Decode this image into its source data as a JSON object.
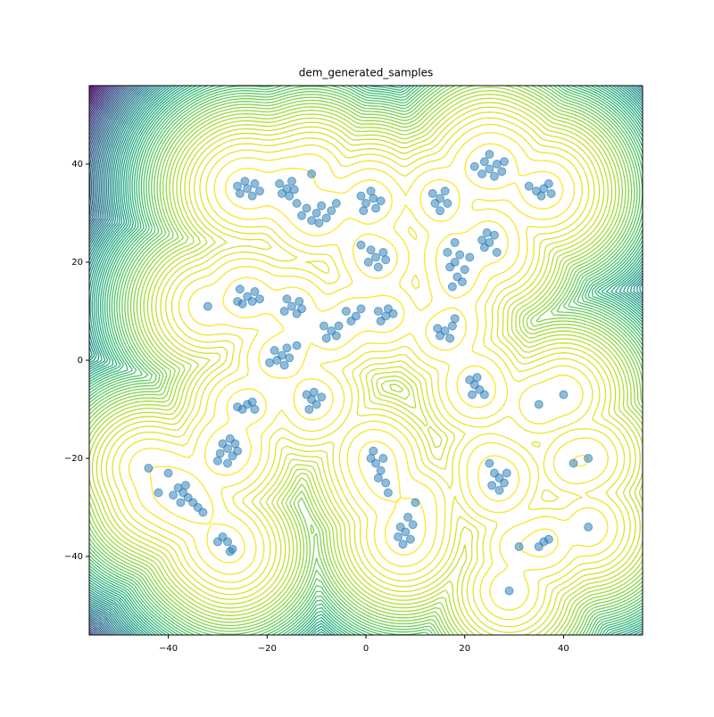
{
  "chart_data": {
    "type": "scatter",
    "title": "dem_generated_samples",
    "x": [
      -24,
      -22.5,
      -25.5,
      -23,
      -26,
      -21.5,
      -24.5,
      -16,
      -15,
      -17,
      -15.5,
      -17.5,
      -14.5,
      -10,
      -8,
      -12,
      -9,
      -11,
      -7,
      -13,
      -9.5,
      -6,
      -14,
      0,
      1.5,
      -1,
      2,
      -0.5,
      3,
      1,
      25,
      26.5,
      24,
      23.5,
      26,
      27.5,
      25,
      22,
      28,
      36,
      37,
      34.5,
      35.5,
      37.5,
      33,
      15,
      16,
      14,
      16.5,
      13.5,
      15,
      2,
      3.5,
      0.5,
      2.5,
      1,
      4,
      -1,
      18,
      19,
      17,
      18.5,
      17.5,
      20,
      16.5,
      19.5,
      18,
      21,
      25,
      26,
      24,
      26.5,
      24.5,
      23.5,
      -24,
      -22.5,
      -25,
      -23,
      -25.5,
      -21.5,
      -26,
      -15,
      -13.5,
      -16.5,
      -14,
      -16,
      -13,
      -2,
      -1,
      -3,
      -4,
      4,
      5.5,
      3,
      4.5,
      2.5,
      -7,
      -6,
      -8,
      -5.5,
      -8.5,
      -17,
      -16,
      -18,
      -15.5,
      -18.5,
      -16.5,
      -19.5,
      -14,
      16,
      17.5,
      15,
      17,
      14.5,
      18,
      22,
      23,
      21,
      22.5,
      24,
      21.5,
      -11,
      -10,
      -12,
      -10.5,
      -11.5,
      -9,
      -24,
      -25,
      -23,
      -26,
      -22.5,
      -28,
      -27,
      -29,
      -26.5,
      -29.5,
      -28,
      -27.5,
      -30,
      -26,
      -37,
      -36,
      -38,
      -35,
      -39,
      -34,
      -37.5,
      -36.5,
      -33,
      -28,
      -27,
      -29,
      -27.5,
      -30,
      2,
      3,
      1,
      3.5,
      2.5,
      4,
      1.5,
      4.5,
      8,
      9,
      7,
      8.5,
      7.5,
      9.5,
      6.5,
      27,
      28,
      26,
      25.5,
      28.5,
      27,
      25,
      36,
      35,
      37,
      -32,
      45,
      40,
      42,
      45,
      29,
      -44,
      -42,
      35,
      31,
      -11,
      10,
      -40
    ],
    "y": [
      35,
      36,
      34,
      33.5,
      35.5,
      34.5,
      36.5,
      35,
      36.5,
      34,
      33.5,
      36,
      34.8,
      30,
      29,
      31,
      31.5,
      28.5,
      30.5,
      29.5,
      28,
      32,
      32,
      32,
      33,
      33.5,
      31,
      30.5,
      32.5,
      34.5,
      39,
      40,
      40.5,
      38,
      37.5,
      38.5,
      42,
      39.5,
      40.5,
      35,
      36,
      34.5,
      33.5,
      34,
      35.5,
      33,
      34.5,
      32,
      32,
      34,
      30.5,
      21,
      22,
      20,
      19,
      22.5,
      20.5,
      23.5,
      20,
      21.5,
      19,
      17,
      15,
      18.5,
      22,
      16,
      24,
      21,
      24,
      25.5,
      23,
      22,
      26,
      24.5,
      13,
      14,
      11.5,
      12,
      14.5,
      12.5,
      12,
      11,
      12,
      10,
      9.5,
      12.5,
      10.5,
      9,
      10.5,
      8,
      10,
      9,
      9.5,
      8,
      10.5,
      10,
      6,
      5,
      4.5,
      7,
      7,
      1,
      2.5,
      0,
      0.5,
      2,
      -1,
      -0.5,
      3,
      6,
      7,
      5,
      4.5,
      6.5,
      8.5,
      -5,
      -6,
      -4,
      -3.5,
      -7,
      -7,
      -8,
      -9,
      -7,
      -6.5,
      -10,
      -7.5,
      -9,
      -10,
      -8.5,
      -9.5,
      -10,
      -18,
      -19.5,
      -17,
      -17,
      -19,
      -21,
      -16,
      -20.5,
      -18.5,
      -27,
      -28,
      -26,
      -29,
      -27.5,
      -30,
      -29,
      -25.5,
      -31,
      -37,
      -38.5,
      -36,
      -39,
      -37,
      -21,
      -22.5,
      -20,
      -20,
      -24,
      -25,
      -18.5,
      -27,
      -35,
      -36.5,
      -34,
      -32,
      -37.5,
      -33.5,
      -36,
      -24,
      -25,
      -23,
      -25.5,
      -23,
      -26.5,
      -21,
      -37,
      -38,
      -36.5,
      11,
      -20,
      -7,
      -21,
      -34,
      -47,
      -22,
      -27,
      -9,
      -38,
      38,
      -29,
      -23
    ],
    "color": "#1f77b4",
    "xlim": [
      -56,
      56
    ],
    "ylim": [
      -56,
      56
    ],
    "xticks": [
      {
        "value": -40,
        "label": "−40"
      },
      {
        "value": -20,
        "label": "−20"
      },
      0,
      20,
      40
    ],
    "yticks": [
      {
        "value": -40,
        "label": "−40"
      },
      {
        "value": -20,
        "label": "−20"
      },
      0,
      20,
      40
    ]
  }
}
